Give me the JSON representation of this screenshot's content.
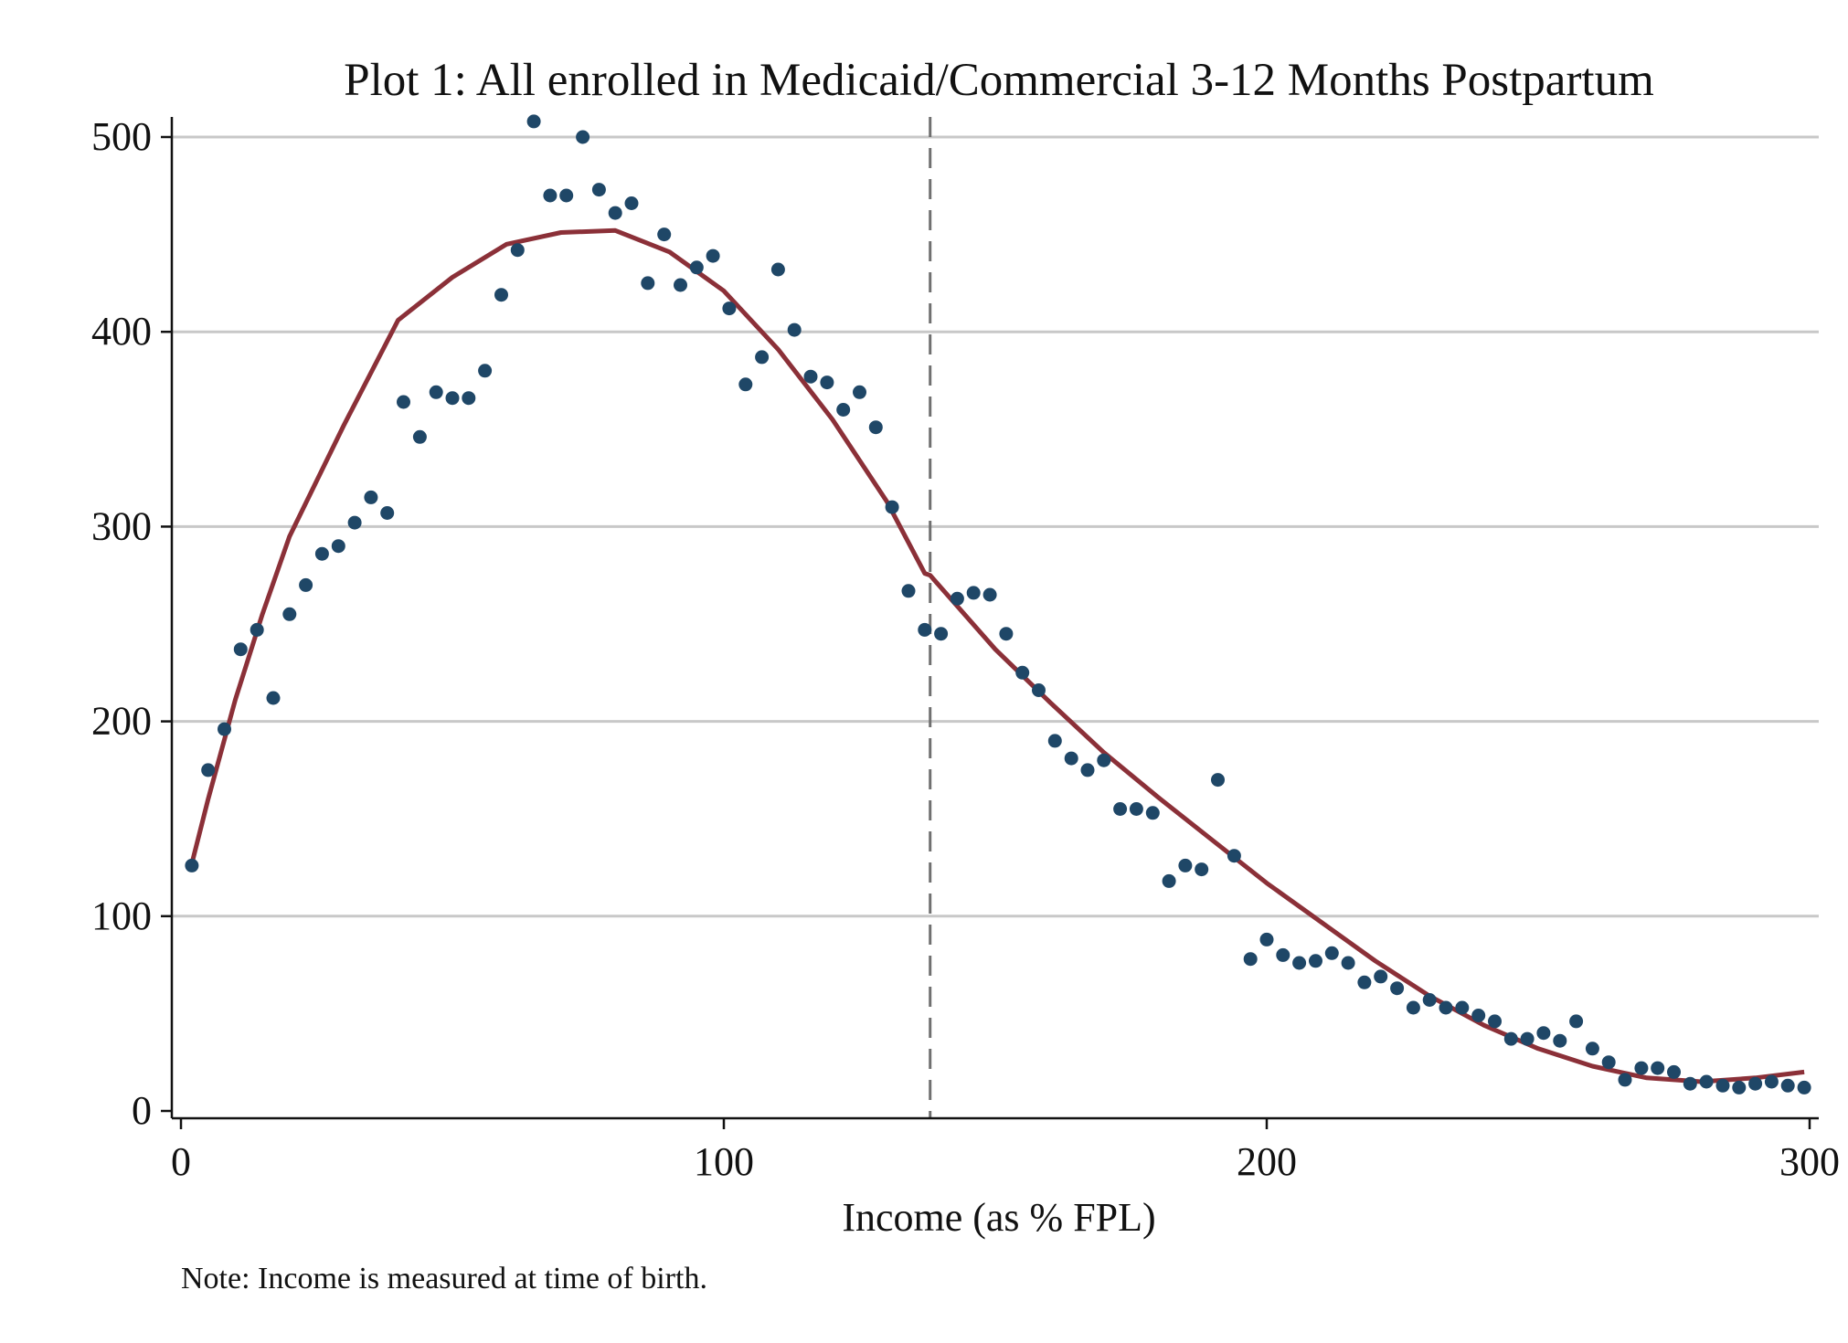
{
  "chart_data": {
    "type": "scatter",
    "title": "Plot 1: All enrolled in Medicaid/Commercial 3-12 Months Postpartum",
    "xlabel": "Income (as % FPL)",
    "ylabel": "",
    "note": "Note: Income is measured at time of birth.",
    "xlim": [
      0,
      300
    ],
    "ylim": [
      0,
      500
    ],
    "x_ticks": [
      0,
      100,
      200,
      300
    ],
    "y_ticks": [
      0,
      100,
      200,
      300,
      400,
      500
    ],
    "grid": "horizontal",
    "cutoff_x": 138,
    "colors": {
      "points": "#1f4767",
      "fit": "#8b3038",
      "cutoff": "#707070",
      "grid": "#c8c8c8"
    },
    "series": [
      {
        "kind": "points",
        "x": [
          2,
          5,
          8,
          11,
          14,
          17,
          20,
          23,
          26,
          29,
          32,
          35,
          38,
          41,
          44,
          47,
          50,
          53,
          56,
          59,
          62,
          65,
          68,
          71,
          74,
          77,
          80,
          83,
          86,
          89,
          92,
          95,
          98,
          101,
          104,
          107,
          110,
          113,
          116,
          119,
          122,
          125,
          128,
          131,
          134,
          137,
          140,
          143,
          146,
          149,
          152,
          155,
          158,
          161,
          164,
          167,
          170,
          173,
          176,
          179,
          182,
          185,
          188,
          191,
          194,
          197,
          200,
          203,
          206,
          209,
          212,
          215,
          218,
          221,
          224,
          227,
          230,
          233,
          236,
          239,
          242,
          245,
          248,
          251,
          254,
          257,
          260,
          263,
          266,
          269,
          272,
          275,
          278,
          281,
          284,
          287,
          290,
          293,
          296,
          299
        ],
        "y": [
          126,
          175,
          196,
          237,
          247,
          212,
          255,
          270,
          286,
          290,
          302,
          315,
          307,
          364,
          346,
          369,
          366,
          366,
          380,
          419,
          442,
          508,
          470,
          470,
          500,
          473,
          461,
          466,
          425,
          450,
          424,
          433,
          439,
          412,
          373,
          387,
          432,
          401,
          377,
          374,
          360,
          369,
          351,
          310,
          267,
          247,
          245,
          263,
          266,
          265,
          245,
          225,
          216,
          190,
          181,
          175,
          180,
          155,
          155,
          153,
          118,
          126,
          124,
          170,
          131,
          78,
          88,
          80,
          76,
          77,
          81,
          76,
          66,
          69,
          63,
          53,
          57,
          53,
          53,
          49,
          46,
          37,
          37,
          40,
          36,
          46,
          32,
          25,
          16,
          22,
          22,
          20,
          14,
          15,
          13,
          12,
          14,
          15,
          13,
          12
        ]
      },
      {
        "kind": "fit",
        "x": [
          2,
          5,
          10,
          15,
          20,
          30,
          40,
          50,
          60,
          70,
          80,
          90,
          100,
          110,
          120,
          130,
          137,
          138,
          150,
          160,
          170,
          180,
          190,
          200,
          210,
          220,
          230,
          240,
          250,
          260,
          270,
          280,
          290,
          299
        ],
        "y": [
          127,
          160,
          211,
          255,
          295,
          352,
          406,
          428,
          445,
          451,
          452,
          441,
          421,
          391,
          355,
          313,
          276,
          275,
          237,
          210,
          184,
          161,
          139,
          117,
          97,
          77,
          59,
          44,
          32,
          23,
          17,
          15,
          17,
          20
        ]
      }
    ]
  }
}
